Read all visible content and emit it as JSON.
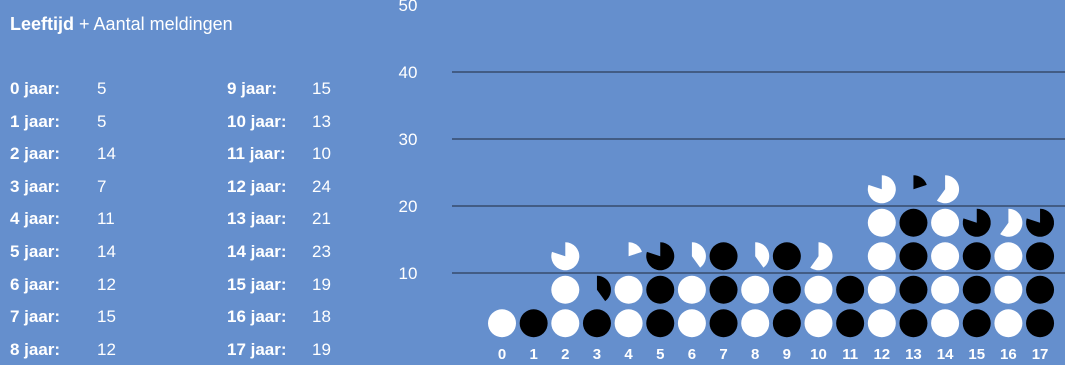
{
  "header": {
    "title_bold": "Leeftijd",
    "title_rest": "+ Aantal meldingen"
  },
  "legend": [
    {
      "label": "0 jaar:",
      "value": "5"
    },
    {
      "label": "1 jaar:",
      "value": "5"
    },
    {
      "label": "2 jaar:",
      "value": "14"
    },
    {
      "label": "3 jaar:",
      "value": "7"
    },
    {
      "label": "4 jaar:",
      "value": "11"
    },
    {
      "label": "5 jaar:",
      "value": "14"
    },
    {
      "label": "6 jaar:",
      "value": "12"
    },
    {
      "label": "7 jaar:",
      "value": "15"
    },
    {
      "label": "8 jaar:",
      "value": "12"
    },
    {
      "label": "9 jaar:",
      "value": "15"
    },
    {
      "label": "10 jaar:",
      "value": "13"
    },
    {
      "label": "11 jaar:",
      "value": "10"
    },
    {
      "label": "12 jaar:",
      "value": "24"
    },
    {
      "label": "13 jaar:",
      "value": "21"
    },
    {
      "label": "14 jaar:",
      "value": "23"
    },
    {
      "label": "15 jaar:",
      "value": "19"
    },
    {
      "label": "16 jaar:",
      "value": "18"
    },
    {
      "label": "17 jaar:",
      "value": "19"
    }
  ],
  "chart_data": {
    "type": "bar",
    "title": "Leeftijd + Aantal meldingen",
    "categories": [
      "0",
      "1",
      "2",
      "3",
      "4",
      "5",
      "6",
      "7",
      "8",
      "9",
      "10",
      "11",
      "12",
      "13",
      "14",
      "15",
      "16",
      "17"
    ],
    "values": [
      5,
      5,
      14,
      7,
      11,
      14,
      12,
      15,
      12,
      15,
      13,
      10,
      24,
      21,
      23,
      19,
      18,
      19
    ],
    "units_per_dot": 5,
    "yticks": [
      10,
      20,
      30,
      40,
      50
    ],
    "ylim": [
      0,
      50
    ],
    "colors": {
      "background": "#658fcd",
      "dot_light": "#ffffff",
      "dot_dark": "#000000"
    }
  }
}
